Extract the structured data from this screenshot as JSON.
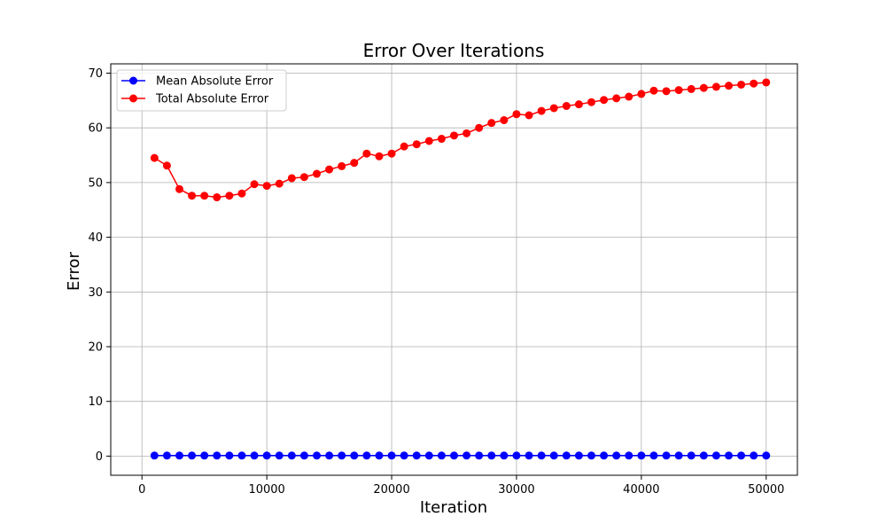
{
  "chart_data": {
    "type": "line",
    "title": "Error Over Iterations",
    "xlabel": "Iteration",
    "ylabel": "Error",
    "xlim": [
      -2500,
      52500
    ],
    "ylim": [
      -3.5,
      71.7
    ],
    "xticks": [
      0,
      10000,
      20000,
      30000,
      40000,
      50000
    ],
    "yticks": [
      0,
      10,
      20,
      30,
      40,
      50,
      60,
      70
    ],
    "grid": true,
    "legend_position": "top-left",
    "x": [
      1000,
      2000,
      3000,
      4000,
      5000,
      6000,
      7000,
      8000,
      9000,
      10000,
      11000,
      12000,
      13000,
      14000,
      15000,
      16000,
      17000,
      18000,
      19000,
      20000,
      21000,
      22000,
      23000,
      24000,
      25000,
      26000,
      27000,
      28000,
      29000,
      30000,
      31000,
      32000,
      33000,
      34000,
      35000,
      36000,
      37000,
      38000,
      39000,
      40000,
      41000,
      42000,
      43000,
      44000,
      45000,
      46000,
      47000,
      48000,
      49000,
      50000
    ],
    "series": [
      {
        "name": "Mean Absolute Error",
        "color": "#0000ff",
        "values": [
          0.1,
          0.1,
          0.1,
          0.1,
          0.1,
          0.1,
          0.1,
          0.1,
          0.1,
          0.1,
          0.1,
          0.1,
          0.1,
          0.1,
          0.1,
          0.1,
          0.1,
          0.1,
          0.1,
          0.1,
          0.1,
          0.1,
          0.1,
          0.1,
          0.1,
          0.1,
          0.1,
          0.1,
          0.1,
          0.1,
          0.1,
          0.1,
          0.1,
          0.1,
          0.1,
          0.1,
          0.1,
          0.1,
          0.1,
          0.1,
          0.1,
          0.1,
          0.1,
          0.1,
          0.1,
          0.1,
          0.1,
          0.1,
          0.1,
          0.1
        ]
      },
      {
        "name": "Total Absolute Error",
        "color": "#ff0000",
        "values": [
          54.5,
          53.1,
          48.8,
          47.6,
          47.6,
          47.3,
          47.6,
          48.0,
          49.7,
          49.4,
          49.8,
          50.8,
          51.0,
          51.6,
          52.4,
          53.0,
          53.6,
          55.3,
          54.8,
          55.3,
          56.6,
          57.0,
          57.6,
          58.0,
          58.6,
          59.0,
          60.0,
          60.9,
          61.4,
          62.5,
          62.3,
          63.1,
          63.6,
          64.0,
          64.3,
          64.7,
          65.1,
          65.4,
          65.7,
          66.2,
          66.8,
          66.7,
          66.9,
          67.1,
          67.3,
          67.5,
          67.7,
          67.9,
          68.1,
          68.3
        ]
      }
    ]
  }
}
